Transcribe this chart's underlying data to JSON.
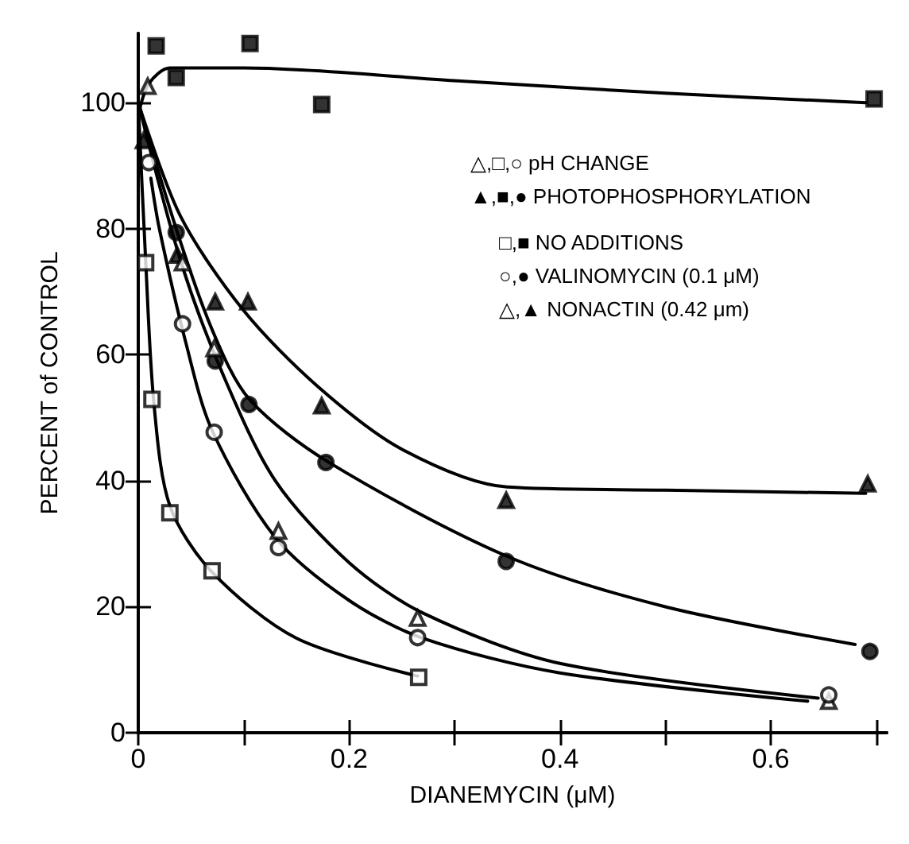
{
  "chart_data": {
    "type": "scatter",
    "xlabel": "DIANEMYCIN (μM)",
    "ylabel": "PERCENT of CONTROL",
    "xlim": [
      0,
      0.71
    ],
    "ylim": [
      0,
      111
    ],
    "xticks": [
      0,
      {
        "value": 0.1,
        "label": null
      },
      0.2,
      {
        "value": 0.3,
        "label": null
      },
      0.4,
      {
        "value": 0.5,
        "label": null
      },
      0.6,
      {
        "value": 0.7,
        "label": null
      }
    ],
    "yticks": [
      0,
      20,
      40,
      60,
      80,
      100
    ],
    "annotations": [
      "△,□,○ pH CHANGE",
      "▲,■,● PHOTOPHOSPHORYLATION",
      "□,■ NO ADDITIONS",
      "○,● VALINOMYCIN (0.1 μM)",
      "△,▲ NONACTIN (0.42 μm)"
    ],
    "series": [
      {
        "marker": "square",
        "color": "#000000",
        "x": [
          0.017,
          0.036,
          0.106,
          0.174,
          0.698
        ],
        "values": [
          109,
          104,
          109.4,
          99.7,
          100.6
        ]
      },
      {
        "marker": "triangle",
        "color": "#000000",
        "x": [
          0.005,
          0.037,
          0.073,
          0.104,
          0.174,
          0.349,
          0.692
        ],
        "values": [
          94,
          75.8,
          68.4,
          68.4,
          51.9,
          36.9,
          39.5
        ]
      },
      {
        "marker": "circle",
        "color": "#000000",
        "x": [
          0.036,
          0.073,
          0.105,
          0.178,
          0.349,
          0.694
        ],
        "values": [
          79.4,
          59,
          52.1,
          42.9,
          27.2,
          12.9
        ]
      },
      {
        "marker": "triangle",
        "color": "#ffffff",
        "x": [
          0.009,
          0.042,
          0.072,
          0.133,
          0.265,
          0.655
        ],
        "values": [
          102.6,
          74.6,
          61,
          32,
          18.2,
          5
        ]
      },
      {
        "marker": "circle",
        "color": "#ffffff",
        "x": [
          0.01,
          0.042,
          0.072,
          0.133,
          0.265,
          0.655
        ],
        "values": [
          90.5,
          64.9,
          47.7,
          29.4,
          15.1,
          6
        ]
      },
      {
        "marker": "square",
        "color": "#ffffff",
        "x": [
          0.007,
          0.013,
          0.03,
          0.07,
          0.266
        ],
        "values": [
          74.6,
          52.9,
          34.9,
          25.7,
          8.8
        ]
      },
      {
        "type": "line",
        "marker": "none",
        "color": "#000000",
        "x": [
          0,
          0.01,
          0.03,
          0.1,
          0.3,
          0.5,
          0.69
        ],
        "values": [
          98,
          103,
          105.5,
          105.5,
          103.5,
          101.5,
          100
        ]
      },
      {
        "type": "line",
        "marker": "none",
        "color": "#000000",
        "x": [
          0,
          0.04,
          0.1,
          0.17,
          0.25,
          0.35,
          0.5,
          0.69
        ],
        "values": [
          100,
          82,
          67,
          55,
          45,
          39,
          38.5,
          38
        ]
      },
      {
        "type": "line",
        "marker": "none",
        "color": "#000000",
        "x": [
          0,
          0.036,
          0.07,
          0.105,
          0.18,
          0.35,
          0.5,
          0.68
        ],
        "values": [
          100,
          80,
          64,
          53,
          43,
          28,
          20,
          14
        ]
      },
      {
        "type": "line",
        "marker": "none",
        "color": "#000000",
        "x": [
          0,
          0.04,
          0.08,
          0.13,
          0.2,
          0.27,
          0.4,
          0.645
        ],
        "values": [
          100,
          75,
          57,
          40,
          27,
          19,
          11,
          5.5
        ]
      },
      {
        "type": "line",
        "marker": "none",
        "color": "#000000",
        "x": [
          0.012,
          0.02,
          0.045,
          0.07,
          0.13,
          0.2,
          0.27,
          0.4,
          0.635
        ],
        "values": [
          88,
          80,
          62,
          48,
          31,
          21,
          15,
          9.5,
          5
        ]
      },
      {
        "type": "line",
        "marker": "none",
        "color": "#000000",
        "x": [
          0,
          0.007,
          0.015,
          0.03,
          0.07,
          0.15,
          0.265
        ],
        "values": [
          100,
          75,
          52,
          36,
          25.5,
          15,
          9
        ]
      }
    ]
  }
}
